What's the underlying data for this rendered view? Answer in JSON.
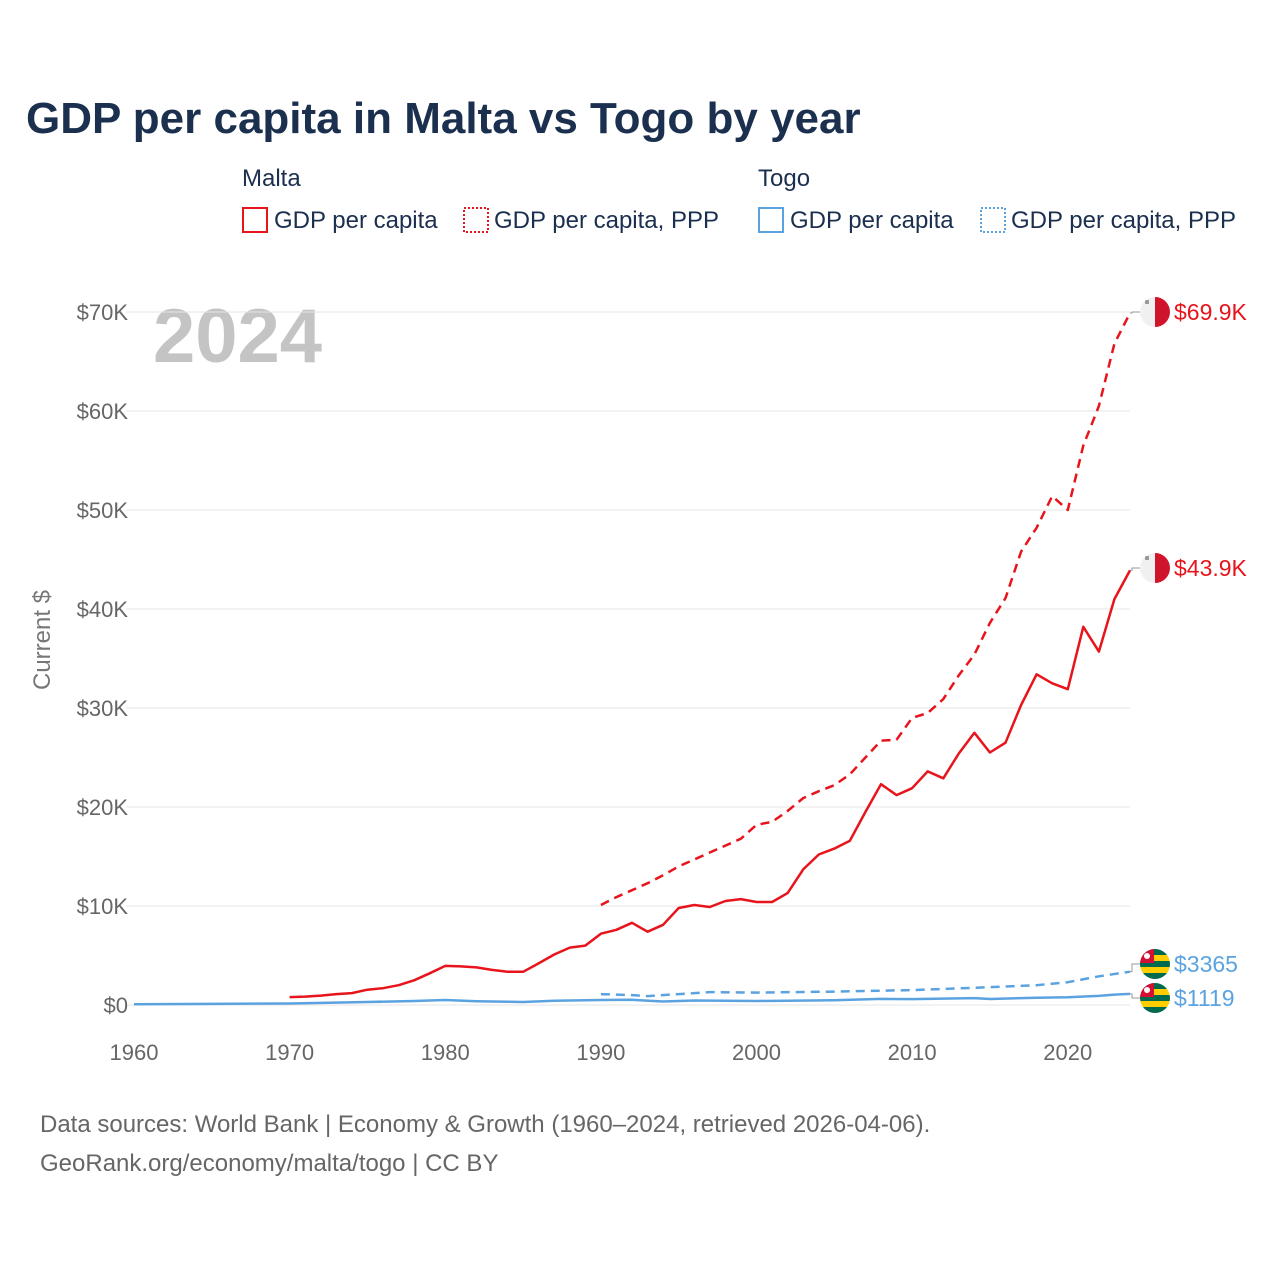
{
  "title": "GDP per capita in Malta vs Togo by year",
  "watermark_year": "2024",
  "legend": {
    "groups": [
      {
        "name": "Malta",
        "color": "#e8141c",
        "items": [
          {
            "label": "GDP per capita",
            "style": "solid"
          },
          {
            "label": "GDP per capita, PPP",
            "style": "dotted"
          }
        ]
      },
      {
        "name": "Togo",
        "color": "#5ba3e0",
        "items": [
          {
            "label": "GDP per capita",
            "style": "solid"
          },
          {
            "label": "GDP per capita, PPP",
            "style": "dotted"
          }
        ]
      }
    ]
  },
  "footer": {
    "line1": "Data sources: World Bank | Economy & Growth (1960–2024, retrieved 2026-04-06).",
    "line2": "GeoRank.org/economy/malta/togo | CC BY"
  },
  "chart_data": {
    "type": "line",
    "title": "GDP per capita in Malta vs Togo by year",
    "xlabel": "",
    "ylabel": "Current $",
    "xlim": [
      1960,
      2024
    ],
    "ylim": [
      0,
      70000
    ],
    "x_ticks": [
      1960,
      1970,
      1980,
      1990,
      2000,
      2010,
      2020
    ],
    "y_ticks": [
      0,
      10000,
      20000,
      30000,
      40000,
      50000,
      60000,
      70000
    ],
    "y_tick_labels": [
      "$0",
      "$10K",
      "$20K",
      "$30K",
      "$40K",
      "$50K",
      "$60K",
      "$70K"
    ],
    "grid": true,
    "series": [
      {
        "name": "Malta GDP per capita, PPP",
        "country": "Malta",
        "color": "#e8141c",
        "dash": "dashed",
        "end_label": "$69.9K",
        "points": [
          [
            1990,
            10100
          ],
          [
            1991,
            10900
          ],
          [
            1992,
            11600
          ],
          [
            1993,
            12300
          ],
          [
            1994,
            13100
          ],
          [
            1995,
            14000
          ],
          [
            1996,
            14700
          ],
          [
            1997,
            15400
          ],
          [
            1998,
            16100
          ],
          [
            1999,
            16800
          ],
          [
            2000,
            18200
          ],
          [
            2001,
            18500
          ],
          [
            2002,
            19600
          ],
          [
            2003,
            20900
          ],
          [
            2004,
            21600
          ],
          [
            2005,
            22200
          ],
          [
            2006,
            23300
          ],
          [
            2007,
            25000
          ],
          [
            2008,
            26700
          ],
          [
            2009,
            26800
          ],
          [
            2010,
            29000
          ],
          [
            2011,
            29500
          ],
          [
            2012,
            30900
          ],
          [
            2013,
            33300
          ],
          [
            2014,
            35400
          ],
          [
            2015,
            38600
          ],
          [
            2016,
            41100
          ],
          [
            2017,
            45800
          ],
          [
            2018,
            48200
          ],
          [
            2019,
            51400
          ],
          [
            2020,
            50000
          ],
          [
            2021,
            56500
          ],
          [
            2022,
            60500
          ],
          [
            2023,
            66800
          ],
          [
            2024,
            69900
          ]
        ]
      },
      {
        "name": "Malta GDP per capita",
        "country": "Malta",
        "color": "#e8141c",
        "dash": "solid",
        "end_label": "$43.9K",
        "points": [
          [
            1970,
            800
          ],
          [
            1971,
            850
          ],
          [
            1972,
            950
          ],
          [
            1973,
            1100
          ],
          [
            1974,
            1200
          ],
          [
            1975,
            1550
          ],
          [
            1976,
            1700
          ],
          [
            1977,
            2000
          ],
          [
            1978,
            2500
          ],
          [
            1979,
            3200
          ],
          [
            1980,
            3950
          ],
          [
            1981,
            3900
          ],
          [
            1982,
            3800
          ],
          [
            1983,
            3550
          ],
          [
            1984,
            3350
          ],
          [
            1985,
            3350
          ],
          [
            1986,
            4200
          ],
          [
            1987,
            5100
          ],
          [
            1988,
            5800
          ],
          [
            1989,
            6000
          ],
          [
            1990,
            7200
          ],
          [
            1991,
            7600
          ],
          [
            1992,
            8300
          ],
          [
            1993,
            7400
          ],
          [
            1994,
            8100
          ],
          [
            1995,
            9800
          ],
          [
            1996,
            10100
          ],
          [
            1997,
            9900
          ],
          [
            1998,
            10500
          ],
          [
            1999,
            10700
          ],
          [
            2000,
            10400
          ],
          [
            2001,
            10400
          ],
          [
            2002,
            11300
          ],
          [
            2003,
            13700
          ],
          [
            2004,
            15200
          ],
          [
            2005,
            15800
          ],
          [
            2006,
            16600
          ],
          [
            2007,
            19500
          ],
          [
            2008,
            22300
          ],
          [
            2009,
            21200
          ],
          [
            2010,
            21900
          ],
          [
            2011,
            23600
          ],
          [
            2012,
            22900
          ],
          [
            2013,
            25400
          ],
          [
            2014,
            27500
          ],
          [
            2015,
            25500
          ],
          [
            2016,
            26500
          ],
          [
            2017,
            30300
          ],
          [
            2018,
            33400
          ],
          [
            2019,
            32500
          ],
          [
            2020,
            31900
          ],
          [
            2021,
            38200
          ],
          [
            2022,
            35700
          ],
          [
            2023,
            41000
          ],
          [
            2024,
            43900
          ]
        ]
      },
      {
        "name": "Togo GDP per capita, PPP",
        "country": "Togo",
        "color": "#5ba3e0",
        "dash": "dashed",
        "end_label": "$3365",
        "points": [
          [
            1990,
            1100
          ],
          [
            1992,
            1000
          ],
          [
            1993,
            900
          ],
          [
            1995,
            1100
          ],
          [
            1997,
            1300
          ],
          [
            2000,
            1250
          ],
          [
            2005,
            1350
          ],
          [
            2010,
            1500
          ],
          [
            2015,
            1800
          ],
          [
            2018,
            2000
          ],
          [
            2020,
            2300
          ],
          [
            2022,
            2900
          ],
          [
            2024,
            3365
          ]
        ]
      },
      {
        "name": "Togo GDP per capita",
        "country": "Togo",
        "color": "#5ba3e0",
        "dash": "solid",
        "end_label": "$1119",
        "points": [
          [
            1960,
            80
          ],
          [
            1965,
            110
          ],
          [
            1970,
            150
          ],
          [
            1975,
            300
          ],
          [
            1978,
            400
          ],
          [
            1980,
            500
          ],
          [
            1982,
            380
          ],
          [
            1985,
            300
          ],
          [
            1987,
            420
          ],
          [
            1990,
            500
          ],
          [
            1992,
            530
          ],
          [
            1994,
            350
          ],
          [
            1996,
            450
          ],
          [
            2000,
            400
          ],
          [
            2005,
            480
          ],
          [
            2008,
            620
          ],
          [
            2010,
            600
          ],
          [
            2014,
            700
          ],
          [
            2015,
            610
          ],
          [
            2018,
            740
          ],
          [
            2020,
            780
          ],
          [
            2022,
            920
          ],
          [
            2023,
            1050
          ],
          [
            2024,
            1119
          ]
        ]
      }
    ]
  }
}
